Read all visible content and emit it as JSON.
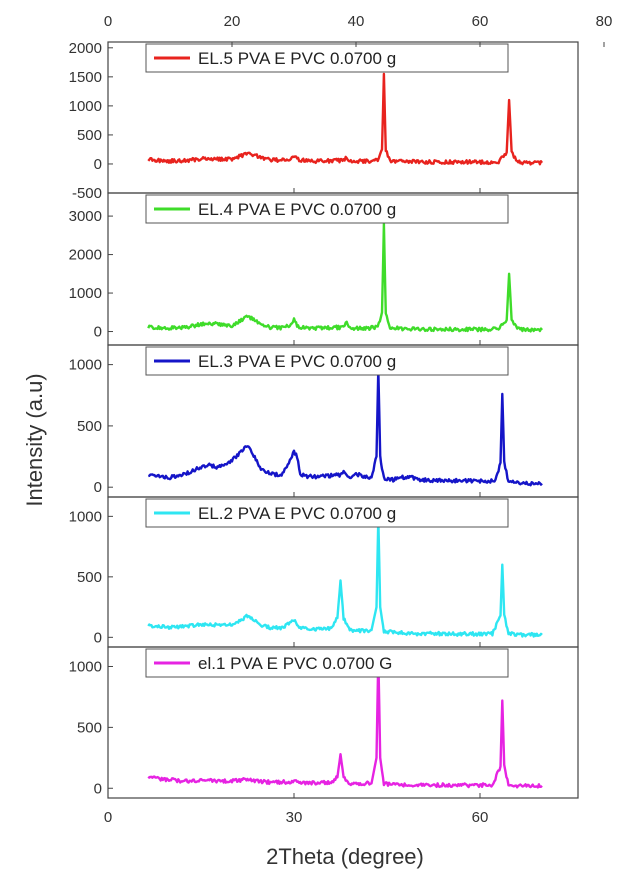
{
  "chart_data": {
    "type": "line",
    "xlabel": "2Theta (degree)",
    "ylabel": "Intensity (a.u)",
    "bottom_x_ticks": [
      "0",
      "30",
      "60"
    ],
    "top_x_ticks": [
      "0",
      "20",
      "40",
      "60",
      "80"
    ],
    "panels": [
      {
        "name": "EL.5 PVA E PVC 0.0700 g",
        "color": "#e8231e",
        "yticks": [
          "2000",
          "1500",
          "1000",
          "500",
          "0",
          "-500"
        ],
        "ylim": [
          -500,
          2100
        ],
        "baseline": 60,
        "x": [
          6.5,
          8,
          10,
          12,
          14,
          16,
          18,
          20,
          21.5,
          22.5,
          23.5,
          24.5,
          26,
          28,
          29.5,
          30,
          30.5,
          32,
          34,
          36,
          38,
          38.5,
          39,
          40,
          42,
          43.5,
          44.2,
          44.5,
          44.8,
          45.5,
          47,
          49,
          52,
          55,
          58,
          61,
          63,
          64.3,
          64.7,
          65.1,
          66,
          68,
          70
        ],
        "y": [
          80,
          60,
          50,
          55,
          75,
          100,
          80,
          90,
          140,
          170,
          160,
          110,
          70,
          65,
          90,
          135,
          80,
          55,
          50,
          55,
          60,
          115,
          55,
          50,
          50,
          60,
          250,
          1550,
          250,
          60,
          45,
          40,
          35,
          30,
          35,
          30,
          30,
          200,
          1100,
          200,
          30,
          20,
          20
        ]
      },
      {
        "name": "EL.4 PVA E PVC 0.0700 g",
        "color": "#3fdc2a",
        "yticks": [
          "3000",
          "2000",
          "1000",
          "0"
        ],
        "ylim": [
          -350,
          3600
        ],
        "baseline": 100,
        "x": [
          6.5,
          8,
          10,
          12,
          14,
          16,
          18,
          20,
          21.5,
          22.5,
          23.5,
          24.5,
          26,
          28,
          29.5,
          30,
          30.5,
          32,
          34,
          36,
          38,
          38.5,
          39,
          40,
          42,
          43.5,
          44.2,
          44.5,
          44.8,
          45.5,
          47,
          49,
          52,
          55,
          58,
          61,
          63,
          64.3,
          64.7,
          65.1,
          66,
          68,
          70
        ],
        "y": [
          120,
          100,
          90,
          100,
          150,
          230,
          180,
          160,
          290,
          380,
          320,
          180,
          110,
          100,
          160,
          340,
          130,
          90,
          90,
          100,
          110,
          250,
          100,
          90,
          85,
          110,
          500,
          2800,
          500,
          110,
          80,
          70,
          60,
          55,
          60,
          55,
          60,
          300,
          1500,
          300,
          60,
          40,
          40
        ]
      },
      {
        "name": "EL.3 PVA E PVC 0.0700 g",
        "color": "#1515c8",
        "yticks": [
          "1000",
          "500",
          "0"
        ],
        "ylim": [
          -80,
          1160
        ],
        "baseline": 60,
        "x": [
          6.5,
          8,
          10,
          12,
          14,
          15.5,
          16.5,
          17.5,
          19,
          20.5,
          21.5,
          22.5,
          23.5,
          24.5,
          26,
          28,
          29,
          29.5,
          30,
          30.5,
          31,
          32,
          34,
          36,
          37.5,
          38,
          38.5,
          39.5,
          40,
          41,
          42.5,
          43.3,
          43.6,
          43.9,
          44.5,
          46,
          47.5,
          48.5,
          50,
          52,
          55,
          58,
          61,
          62.5,
          63.3,
          63.6,
          63.9,
          64.6,
          66,
          68,
          70
        ],
        "y": [
          100,
          90,
          80,
          100,
          140,
          175,
          180,
          160,
          190,
          240,
          290,
          340,
          260,
          160,
          110,
          100,
          180,
          240,
          290,
          250,
          110,
          90,
          85,
          95,
          100,
          130,
          90,
          90,
          110,
          90,
          80,
          250,
          960,
          250,
          70,
          60,
          80,
          90,
          65,
          55,
          50,
          55,
          50,
          50,
          200,
          760,
          200,
          50,
          35,
          30,
          30
        ]
      },
      {
        "name": "EL.2 PVA E PVC 0.0700 g",
        "color": "#2ee6f2",
        "yticks": [
          "1000",
          "500",
          "0"
        ],
        "ylim": [
          -80,
          1160
        ],
        "baseline": 80,
        "x": [
          6.5,
          8,
          10,
          12,
          14,
          16,
          18,
          20,
          21.5,
          22.5,
          23.5,
          24.5,
          26,
          28,
          29.5,
          30,
          30.5,
          32,
          34,
          36,
          37,
          37.5,
          38,
          39,
          41,
          42.5,
          43.3,
          43.6,
          43.9,
          44.5,
          46,
          48,
          50,
          53,
          56,
          59,
          62,
          63.3,
          63.6,
          63.9,
          64.6,
          66,
          68,
          70
        ],
        "y": [
          100,
          90,
          80,
          90,
          100,
          110,
          100,
          110,
          140,
          180,
          140,
          100,
          80,
          80,
          120,
          150,
          90,
          70,
          70,
          75,
          160,
          470,
          160,
          60,
          55,
          60,
          250,
          980,
          250,
          50,
          40,
          35,
          30,
          30,
          28,
          28,
          30,
          180,
          600,
          180,
          30,
          20,
          20,
          20
        ]
      },
      {
        "name": "el.1 PVA E PVC 0.0700 G",
        "color": "#e623e2",
        "yticks": [
          "1000",
          "500",
          "0"
        ],
        "ylim": [
          -80,
          1160
        ],
        "baseline": 60,
        "x": [
          6.5,
          8,
          10,
          12,
          14,
          16,
          18,
          20,
          22,
          24,
          26,
          28,
          29.5,
          30,
          30.5,
          32,
          34,
          36,
          37,
          37.5,
          38,
          39,
          41,
          42.5,
          43.3,
          43.6,
          43.9,
          44.5,
          46,
          48,
          50,
          53,
          56,
          59,
          62,
          63.3,
          63.6,
          63.9,
          64.6,
          66,
          68,
          70
        ],
        "y": [
          100,
          80,
          70,
          60,
          60,
          65,
          60,
          60,
          70,
          60,
          50,
          50,
          55,
          70,
          50,
          45,
          45,
          50,
          90,
          280,
          90,
          40,
          40,
          40,
          250,
          1080,
          250,
          35,
          30,
          28,
          25,
          25,
          25,
          25,
          25,
          180,
          720,
          180,
          25,
          20,
          20,
          20
        ]
      }
    ]
  }
}
